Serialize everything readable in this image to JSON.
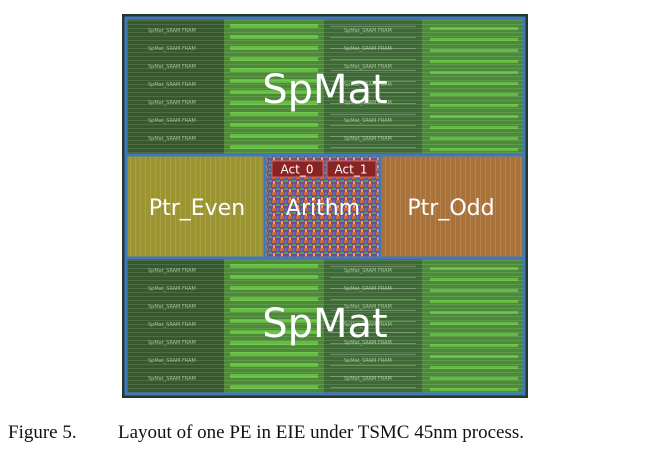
{
  "figure": {
    "blocks": {
      "spmat_top": "SpMat",
      "ptr_even": "Ptr_Even",
      "arithm": "Arithm",
      "act_0": "Act_0",
      "act_1": "Act_1",
      "ptr_odd": "Ptr_Odd",
      "spmat_bottom": "SpMat"
    },
    "sram_label": "SpMat_SRAM FRAM",
    "caption": {
      "label": "Figure 5.",
      "text": "Layout of one PE in EIE under TSMC 45nm process."
    }
  }
}
